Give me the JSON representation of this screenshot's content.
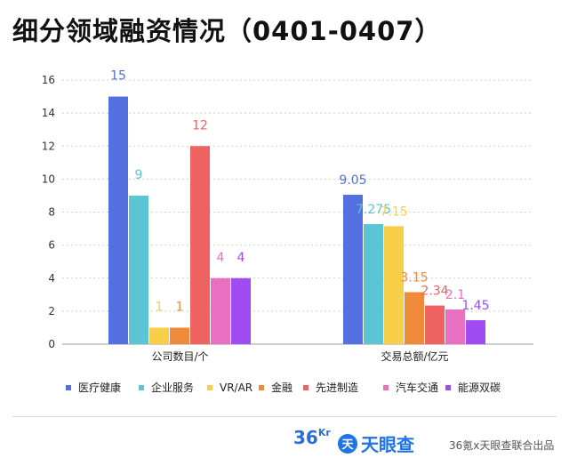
{
  "title": "细分领域融资情况（0401-0407）",
  "chart_data": {
    "type": "bar",
    "groups": [
      "公司数目/个",
      "交易总额/亿元"
    ],
    "series": [
      {
        "name": "医疗健康",
        "color": "#5470e0",
        "values": [
          15,
          9.05
        ]
      },
      {
        "name": "企业服务",
        "color": "#5bc5d3",
        "values": [
          9,
          7.275
        ]
      },
      {
        "name": "VR/AR",
        "color": "#f9cf4a",
        "values": [
          1,
          7.15
        ]
      },
      {
        "name": "金融",
        "color": "#ef8a3b",
        "values": [
          1,
          3.15
        ]
      },
      {
        "name": "先进制造",
        "color": "#ee6361",
        "values": [
          12,
          2.34
        ]
      },
      {
        "name": "汽车交通",
        "color": "#e96fc0",
        "values": [
          4,
          2.1
        ]
      },
      {
        "name": "能源双碳",
        "color": "#a04cf2",
        "values": [
          4,
          1.45
        ]
      }
    ],
    "value_labels": [
      [
        "15",
        "9.05"
      ],
      [
        "9",
        "7.275"
      ],
      [
        "1",
        "7.15"
      ],
      [
        "1",
        "3.15"
      ],
      [
        "12",
        "2.34"
      ],
      [
        "4",
        "2.1"
      ],
      [
        "4",
        "1.45"
      ]
    ],
    "yticks": [
      "0",
      "2",
      "4",
      "6",
      "8",
      "10",
      "12",
      "14",
      "16"
    ],
    "ylim": [
      0,
      16
    ],
    "grid": true,
    "legend_position": "bottom"
  },
  "footer": {
    "logo_36kr": "36Kr",
    "logo_tianyancha": "天眼查",
    "credit": "36氪x天眼查联合出品"
  }
}
